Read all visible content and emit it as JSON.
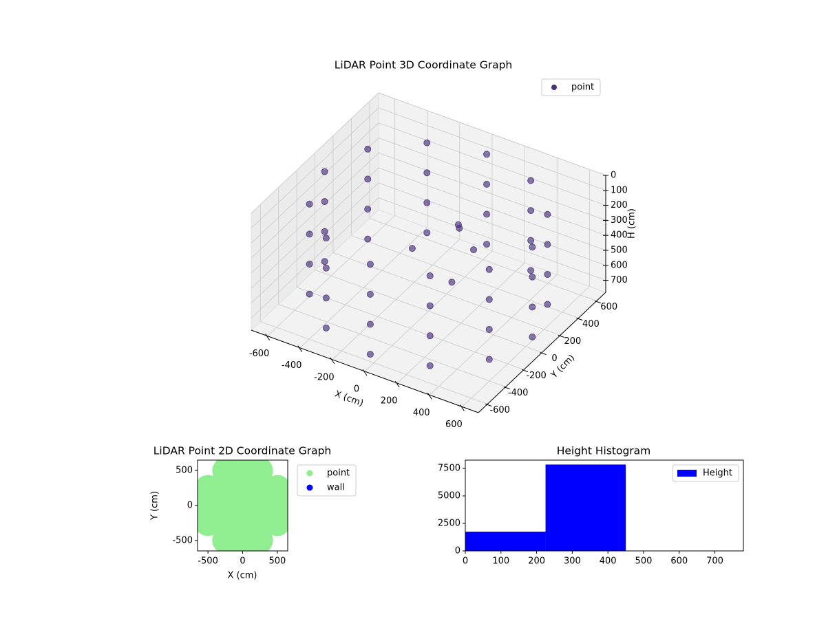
{
  "chart_data": [
    {
      "type": "scatter3d",
      "title": "LiDAR Point 3D Coordinate Graph",
      "xlabel": "X (cm)",
      "ylabel": "Y (cm)",
      "zlabel": "H (cm)",
      "series": [
        {
          "name": "point",
          "color": "#46307a",
          "x": [
            640,
            554,
            320,
            0,
            -320,
            -554,
            -640,
            -554,
            -320,
            0,
            320,
            554,
            640,
            554,
            320,
            0,
            -320,
            -554,
            -640,
            -554,
            -320,
            0,
            320,
            554,
            640,
            554,
            320,
            0,
            -320,
            -554,
            -640,
            -554,
            -320,
            0,
            320,
            554,
            640,
            554,
            320,
            0,
            -320,
            -554,
            -640,
            -554,
            -320,
            0,
            320,
            554,
            100,
            50,
            -100,
            200,
            250
          ],
          "y": [
            0,
            320,
            554,
            640,
            554,
            320,
            0,
            -320,
            -554,
            -640,
            -554,
            -320,
            0,
            320,
            554,
            640,
            554,
            320,
            0,
            -320,
            -554,
            -640,
            -554,
            -320,
            0,
            320,
            554,
            640,
            554,
            320,
            0,
            -320,
            -554,
            -640,
            -554,
            -320,
            0,
            320,
            554,
            640,
            554,
            320,
            0,
            -320,
            -554,
            -640,
            -554,
            -320,
            150,
            250,
            0,
            -100,
            50
          ],
          "z": [
            100,
            100,
            100,
            100,
            100,
            100,
            100,
            100,
            100,
            100,
            100,
            100,
            300,
            300,
            300,
            300,
            300,
            300,
            300,
            300,
            300,
            300,
            300,
            300,
            500,
            500,
            500,
            500,
            500,
            500,
            500,
            500,
            500,
            500,
            500,
            500,
            700,
            700,
            700,
            700,
            700,
            700,
            700,
            700,
            700,
            700,
            700,
            700,
            250,
            350,
            400,
            450,
            300
          ]
        }
      ],
      "xlim": [
        -700,
        700
      ],
      "ylim": [
        -700,
        700
      ],
      "zlim": [
        0,
        780
      ],
      "zinverted": true,
      "xticks": [
        -600,
        -400,
        -200,
        0,
        200,
        400,
        600
      ],
      "yticks": [
        -600,
        -400,
        -200,
        0,
        200,
        400,
        600
      ],
      "zticks": [
        0,
        100,
        200,
        300,
        400,
        500,
        600,
        700
      ],
      "grid": true,
      "legend": "upper right"
    },
    {
      "type": "scatter",
      "title": "LiDAR Point 2D Coordinate Graph",
      "xlabel": "X (cm)",
      "ylabel": "Y (cm)",
      "series": [
        {
          "name": "point",
          "color": "#90ee90",
          "x": [
            -250,
            0,
            250,
            -500,
            -250,
            0,
            250,
            500,
            -500,
            -250,
            0,
            250,
            500,
            -500,
            -250,
            0,
            250,
            500,
            -250,
            0,
            250,
            640,
            0,
            -640,
            0
          ],
          "y": [
            500,
            500,
            500,
            250,
            250,
            250,
            250,
            250,
            0,
            0,
            0,
            0,
            0,
            -250,
            -250,
            -250,
            -250,
            -250,
            -500,
            -500,
            -500,
            0,
            640,
            0,
            -640
          ]
        },
        {
          "name": "wall",
          "color": "#0000ff",
          "x": [],
          "y": []
        }
      ],
      "xlim": [
        -650,
        650
      ],
      "ylim": [
        -650,
        650
      ],
      "xticks": [
        -500,
        0,
        500
      ],
      "yticks": [
        -500,
        0,
        500
      ],
      "legend": "outside right"
    },
    {
      "type": "histogram",
      "title": "Height Histogram",
      "name": "Height",
      "color": "#0000ff",
      "bins": [
        0,
        225,
        450,
        675
      ],
      "values": [
        1750,
        7850,
        0
      ],
      "xlim": [
        0,
        780
      ],
      "ylim": [
        0,
        8250
      ],
      "xticks": [
        0,
        100,
        200,
        300,
        400,
        500,
        600,
        700
      ],
      "yticks": [
        0,
        2500,
        5000,
        7500
      ],
      "legend": "upper right"
    }
  ]
}
